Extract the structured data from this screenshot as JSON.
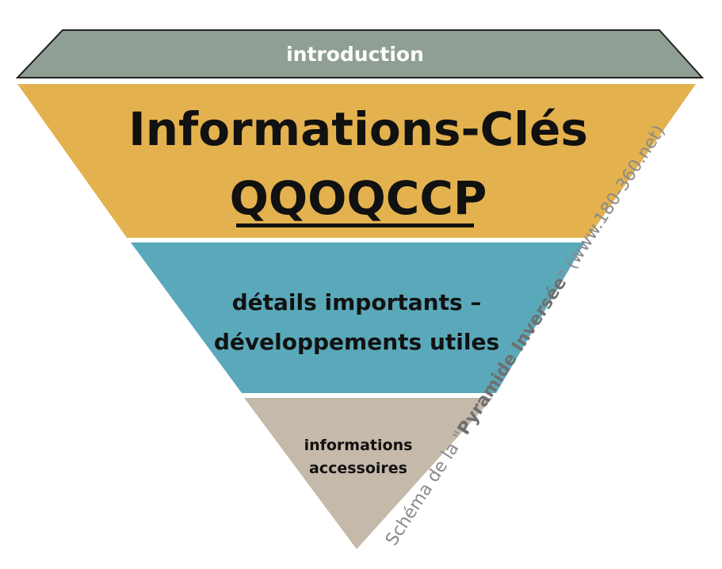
{
  "diagram": {
    "layers": [
      {
        "id": "introduction",
        "label": "introduction",
        "color": "#8f9f94"
      },
      {
        "id": "key-info",
        "title": "Informations-Clés",
        "subtitle": "QQOQCCP",
        "color": "#e3b24f"
      },
      {
        "id": "details",
        "line1": "détails importants –",
        "line2": "développements utiles",
        "color": "#5aa9ba"
      },
      {
        "id": "accessory",
        "line1": "informations",
        "line2": "accessoires",
        "color": "#c5b9a9"
      }
    ],
    "credit": {
      "prefix": "Schéma de la \"",
      "emphasis": "Pyramide Inversée",
      "suffix": "\" (www.180-360.net)"
    }
  }
}
